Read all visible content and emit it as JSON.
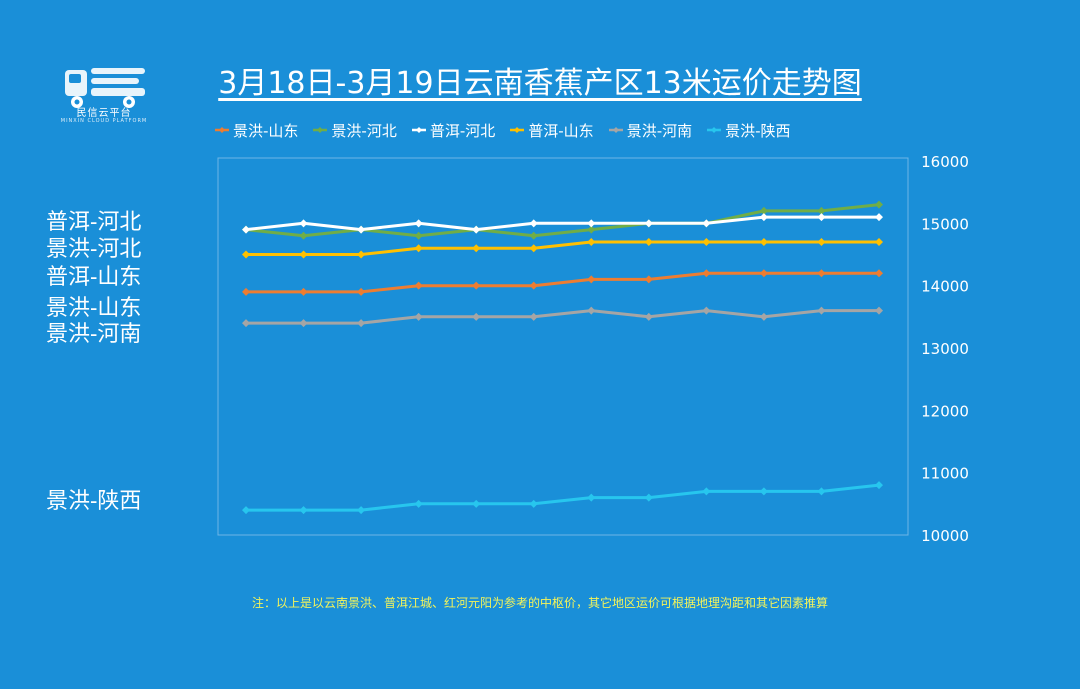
{
  "logo": {
    "name": "民信云平台",
    "subtitle": "MINXIN CLOUD PLATFORM"
  },
  "colors": {
    "background": "#1a8fd8",
    "plot_border": "#6fb6e6"
  },
  "note": "注：以上是以云南景洪、普洱江城、红河元阳为参考的中枢价，其它地区运价可根据地理沟距和其它因素推算",
  "side_labels": [
    "普洱-河北",
    "景洪-河北",
    "普洱-山东",
    "景洪-山东",
    "景洪-河南",
    "景洪-陕西"
  ],
  "chart_data": {
    "type": "line",
    "title": "3月18日-3月19日云南香蕉产区13米运价走势图",
    "x": [
      1,
      2,
      3,
      4,
      5,
      6,
      7,
      8,
      9,
      10,
      11,
      12
    ],
    "ylim": [
      10000,
      16000
    ],
    "yticks": [
      "10000",
      "11000",
      "12000",
      "13000",
      "14000",
      "15000",
      "16000"
    ],
    "y_axis_side": "right",
    "grid": false,
    "legend_position": "top",
    "series": [
      {
        "name": "景洪-山东",
        "color": "#ed7d31",
        "values": [
          13900,
          13900,
          13900,
          14000,
          14000,
          14000,
          14100,
          14100,
          14200,
          14200,
          14200,
          14200
        ]
      },
      {
        "name": "景洪-河北",
        "color": "#70ad47",
        "values": [
          14900,
          14800,
          14900,
          14800,
          14900,
          14800,
          14900,
          15000,
          15000,
          15200,
          15200,
          15300
        ]
      },
      {
        "name": "普洱-河北",
        "color": "#ffffff",
        "values": [
          14900,
          15000,
          14900,
          15000,
          14900,
          15000,
          15000,
          15000,
          15000,
          15100,
          15100,
          15100
        ]
      },
      {
        "name": "普洱-山东",
        "color": "#ffc000",
        "values": [
          14500,
          14500,
          14500,
          14600,
          14600,
          14600,
          14700,
          14700,
          14700,
          14700,
          14700,
          14700
        ]
      },
      {
        "name": "景洪-河南",
        "color": "#a5a5a5",
        "values": [
          13400,
          13400,
          13400,
          13500,
          13500,
          13500,
          13600,
          13500,
          13600,
          13500,
          13600,
          13600
        ]
      },
      {
        "name": "景洪-陕西",
        "color": "#27c6ee",
        "values": [
          10400,
          10400,
          10400,
          10500,
          10500,
          10500,
          10600,
          10600,
          10700,
          10700,
          10700,
          10800
        ]
      }
    ]
  }
}
